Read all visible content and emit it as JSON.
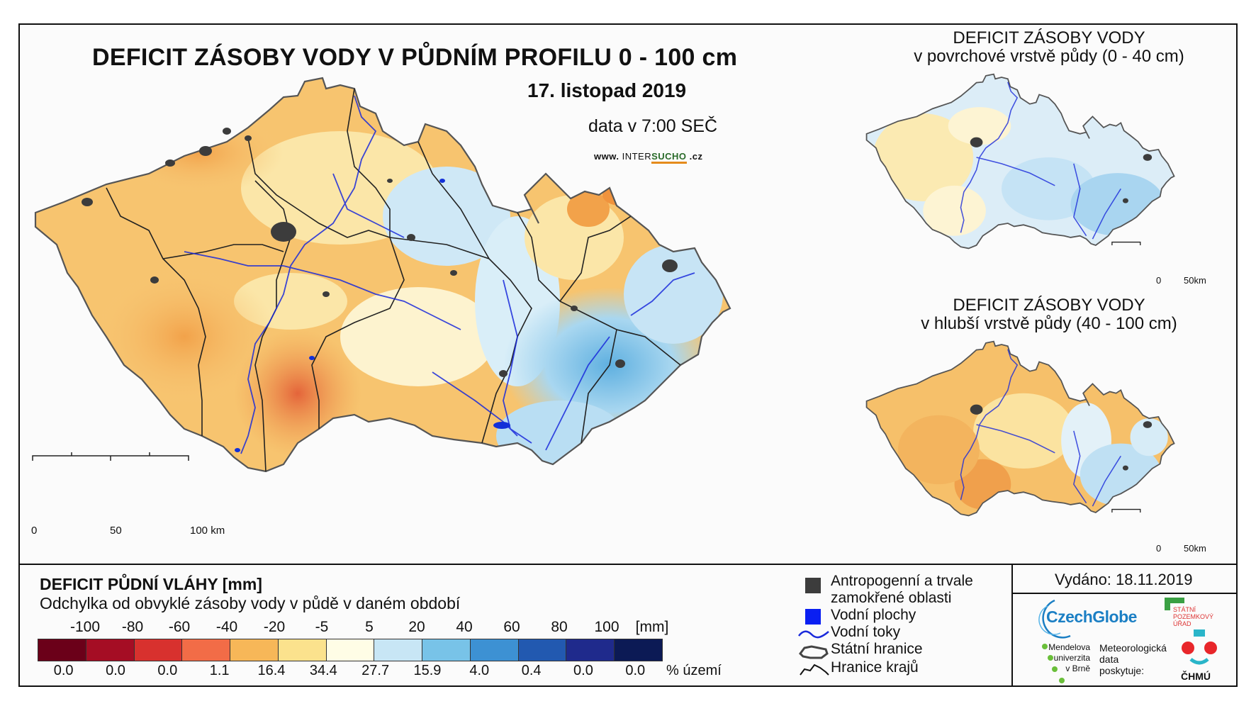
{
  "main_map": {
    "title": "DEFICIT ZÁSOBY VODY V PŮDNÍM PROFILU 0 - 100 cm",
    "date": "17. listopad 2019",
    "time": "data v 7:00 SEČ",
    "website": {
      "prefix": "www.",
      "name_a": "INTER",
      "name_b": "SUCHO",
      "suffix": ".cz"
    },
    "scale_labels": [
      "0",
      "50",
      "100 km"
    ]
  },
  "inset_top": {
    "title": "DEFICIT ZÁSOBY VODY",
    "subtitle": "v povrchové vrstvě půdy (0 - 40 cm)",
    "scale_labels": [
      "0",
      "50km"
    ]
  },
  "inset_bottom": {
    "title": "DEFICIT ZÁSOBY VODY",
    "subtitle": "v hlubší vrstvě půdy (40 - 100 cm)",
    "scale_labels": [
      "0",
      "50km"
    ]
  },
  "legend": {
    "title": "DEFICIT PŮDNÍ VLÁHY [mm]",
    "subtitle": "Odchylka od obvyklé zásoby vody v půdě v daném období",
    "ticks": [
      "-100",
      "-80",
      "-60",
      "-40",
      "-20",
      "-5",
      "5",
      "20",
      "40",
      "60",
      "80",
      "100",
      "[mm]"
    ],
    "colors": [
      "#6b0019",
      "#a50d24",
      "#d8312e",
      "#f26c47",
      "#f7b758",
      "#fbe28d",
      "#fffde6",
      "#c8e6f5",
      "#78c3e8",
      "#3d91d3",
      "#2259b0",
      "#1f2a8c",
      "#0c1a55"
    ],
    "percentages": [
      "0.0",
      "0.0",
      "0.0",
      "1.1",
      "16.4",
      "34.4",
      "27.7",
      "15.9",
      "4.0",
      "0.4",
      "0.0",
      "0.0"
    ],
    "percent_unit": "% území"
  },
  "symbols": {
    "anthropogenic_1": "Antropogenní a trvale",
    "anthropogenic_2": "zamokřené oblasti",
    "water_bodies": "Vodní plochy",
    "rivers": "Vodní toky",
    "state_border": "Státní hranice",
    "region_border": "Hranice krajů"
  },
  "credits": {
    "issued": "Vydáno: 18.11.2019",
    "czechglobe": "CzechGlobe",
    "szu_1": "STÁTNÍ",
    "szu_2": "POZEMKOVÝ",
    "szu_3": "ÚŘAD",
    "mendel_1": "Mendelova",
    "mendel_2": "univerzita",
    "mendel_3": "v Brně",
    "met_1": "Meteorologická",
    "met_2": "data",
    "met_3": "poskytuje:",
    "chmu": "ČHMÚ"
  }
}
